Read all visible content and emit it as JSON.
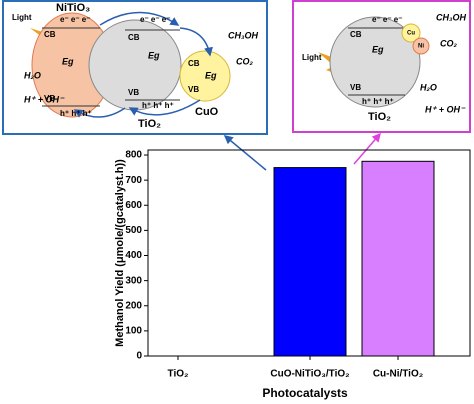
{
  "chart_data": {
    "type": "bar",
    "categories": [
      "TiO₂",
      "CuO-NiTiO₃/TiO₂",
      "Cu-Ni/TiO₂"
    ],
    "values": [
      0,
      750,
      775
    ],
    "colors": [
      "#0000ff",
      "#0000ff",
      "#d77fff"
    ],
    "ylim": [
      0,
      820
    ],
    "yticks": [
      0,
      100,
      200,
      300,
      400,
      500,
      600,
      700,
      800
    ],
    "y_label": "Methanol Yield (μmole/(gcatalyst.h))",
    "x_label": "Photocatalysts"
  },
  "diagrams": [
    {
      "labels": [
        "Light",
        "NiTiO₃",
        "CB",
        "VB",
        "Eg",
        "e⁻ e⁻ e⁻",
        "h⁺ h⁺ h⁺",
        "e⁻ e⁻ e⁻",
        "h⁺ h⁺ h⁺",
        "CB",
        "VB",
        "Eg",
        "TiO₂",
        "CB",
        "VB",
        "Eg",
        "CuO",
        "CH₃OH",
        "CO₂",
        "H₂O",
        "H⁺ + OH⁻"
      ]
    },
    {
      "labels": [
        "Light",
        "CB",
        "VB",
        "Eg",
        "e⁻ e⁻ e⁻",
        "h⁺ h⁺ h⁺",
        "TiO₂",
        "Cu",
        "Ni",
        "CH₃OH",
        "CO₂",
        "H₂O",
        "H⁺ + OH⁻"
      ]
    }
  ]
}
